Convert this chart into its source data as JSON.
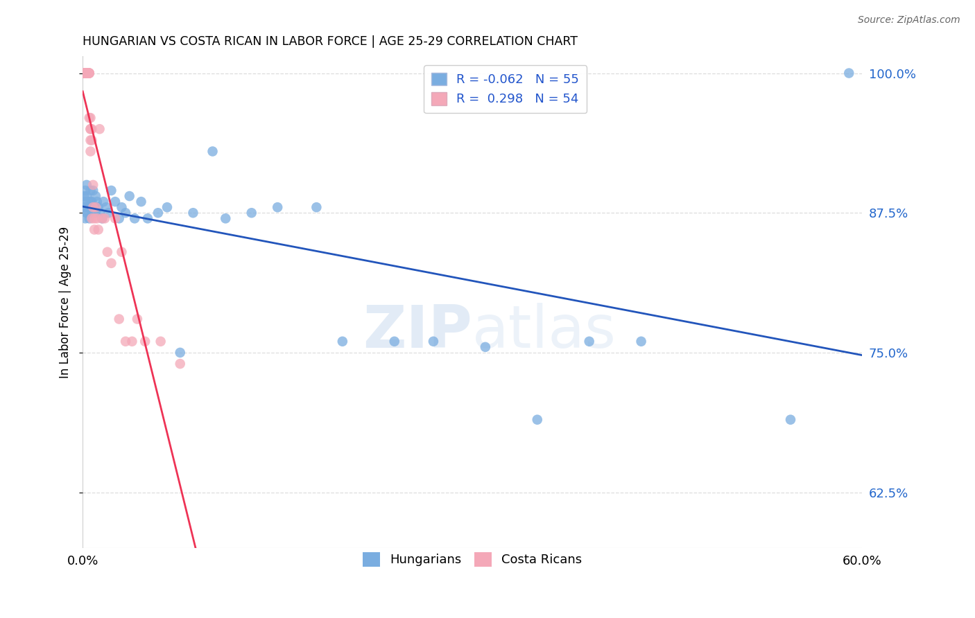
{
  "title": "HUNGARIAN VS COSTA RICAN IN LABOR FORCE | AGE 25-29 CORRELATION CHART",
  "source": "Source: ZipAtlas.com",
  "ylabel": "In Labor Force | Age 25-29",
  "xlim": [
    0.0,
    0.6
  ],
  "ylim": [
    0.575,
    1.015
  ],
  "yticks": [
    0.625,
    0.75,
    0.875,
    1.0
  ],
  "ytick_labels": [
    "62.5%",
    "75.0%",
    "87.5%",
    "100.0%"
  ],
  "xticks": [
    0.0,
    0.1,
    0.2,
    0.3,
    0.4,
    0.5,
    0.6
  ],
  "xtick_labels": [
    "0.0%",
    "",
    "",
    "",
    "",
    "",
    "60.0%"
  ],
  "hungarian_R": -0.062,
  "hungarian_N": 55,
  "costarican_R": 0.298,
  "costarican_N": 54,
  "blue_color": "#7aade0",
  "pink_color": "#f4a8b8",
  "blue_line_color": "#2255bb",
  "pink_line_color": "#ee3355",
  "legend_blue_label": "Hungarians",
  "legend_pink_label": "Costa Ricans",
  "watermark_zip": "ZIP",
  "watermark_atlas": "atlas",
  "hungarian_x": [
    0.001,
    0.001,
    0.002,
    0.002,
    0.002,
    0.003,
    0.003,
    0.003,
    0.003,
    0.004,
    0.004,
    0.005,
    0.005,
    0.006,
    0.006,
    0.007,
    0.007,
    0.008,
    0.009,
    0.01,
    0.01,
    0.011,
    0.012,
    0.013,
    0.015,
    0.016,
    0.018,
    0.02,
    0.022,
    0.025,
    0.028,
    0.03,
    0.033,
    0.036,
    0.04,
    0.045,
    0.05,
    0.058,
    0.065,
    0.075,
    0.085,
    0.1,
    0.11,
    0.13,
    0.15,
    0.18,
    0.2,
    0.24,
    0.27,
    0.31,
    0.35,
    0.39,
    0.43,
    0.545,
    0.59
  ],
  "hungarian_y": [
    0.88,
    0.89,
    0.87,
    0.885,
    0.895,
    0.88,
    0.875,
    0.89,
    0.9,
    0.885,
    0.875,
    0.88,
    0.87,
    0.885,
    0.895,
    0.875,
    0.885,
    0.895,
    0.88,
    0.875,
    0.89,
    0.885,
    0.88,
    0.875,
    0.87,
    0.885,
    0.88,
    0.875,
    0.895,
    0.885,
    0.87,
    0.88,
    0.875,
    0.89,
    0.87,
    0.885,
    0.87,
    0.875,
    0.88,
    0.75,
    0.875,
    0.93,
    0.87,
    0.875,
    0.88,
    0.88,
    0.76,
    0.76,
    0.76,
    0.755,
    0.69,
    0.76,
    0.76,
    0.69,
    1.0
  ],
  "hungarian_y_outliers": {
    "idx_low1": 37,
    "idx_low2": 38,
    "idx_high": 54
  },
  "costarican_x": [
    0.001,
    0.001,
    0.001,
    0.002,
    0.002,
    0.002,
    0.002,
    0.003,
    0.003,
    0.003,
    0.003,
    0.003,
    0.004,
    0.004,
    0.004,
    0.004,
    0.004,
    0.004,
    0.004,
    0.005,
    0.005,
    0.005,
    0.005,
    0.005,
    0.005,
    0.006,
    0.006,
    0.006,
    0.006,
    0.006,
    0.007,
    0.007,
    0.007,
    0.008,
    0.008,
    0.009,
    0.009,
    0.01,
    0.011,
    0.012,
    0.013,
    0.015,
    0.017,
    0.019,
    0.022,
    0.025,
    0.028,
    0.03,
    0.033,
    0.038,
    0.042,
    0.048,
    0.06,
    0.075
  ],
  "costarican_y": [
    1.0,
    1.0,
    1.0,
    1.0,
    1.0,
    1.0,
    1.0,
    1.0,
    1.0,
    1.0,
    1.0,
    1.0,
    1.0,
    1.0,
    1.0,
    1.0,
    1.0,
    1.0,
    1.0,
    1.0,
    1.0,
    1.0,
    1.0,
    1.0,
    0.96,
    0.95,
    0.94,
    0.96,
    0.95,
    0.93,
    0.95,
    0.94,
    0.87,
    0.9,
    0.88,
    0.87,
    0.86,
    0.88,
    0.87,
    0.86,
    0.95,
    0.87,
    0.87,
    0.84,
    0.83,
    0.87,
    0.78,
    0.84,
    0.76,
    0.76,
    0.78,
    0.76,
    0.76,
    0.74
  ]
}
